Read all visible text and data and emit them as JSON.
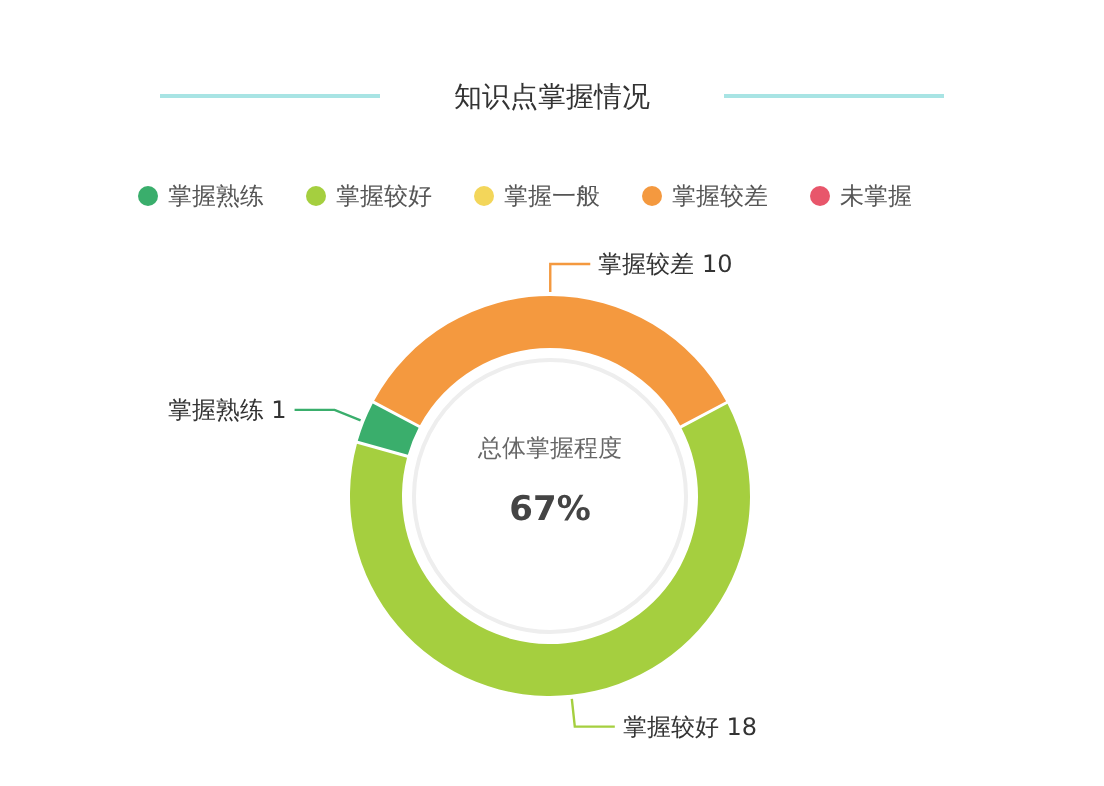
{
  "chart_data": {
    "type": "donut",
    "title": "知识点掌握情况",
    "categories": [
      "掌握熟练",
      "掌握较好",
      "掌握一般",
      "掌握较差",
      "未掌握"
    ],
    "values": [
      1,
      18,
      0,
      10,
      0
    ],
    "value_labels": [
      "1",
      "18",
      null,
      "10",
      null
    ],
    "colors": [
      "#3aae6c",
      "#a5cf3f",
      "#f3d65a",
      "#f4993f",
      "#e8566b"
    ],
    "legend": "top",
    "annotations": [
      "总体掌握程度",
      "67%"
    ]
  }
}
